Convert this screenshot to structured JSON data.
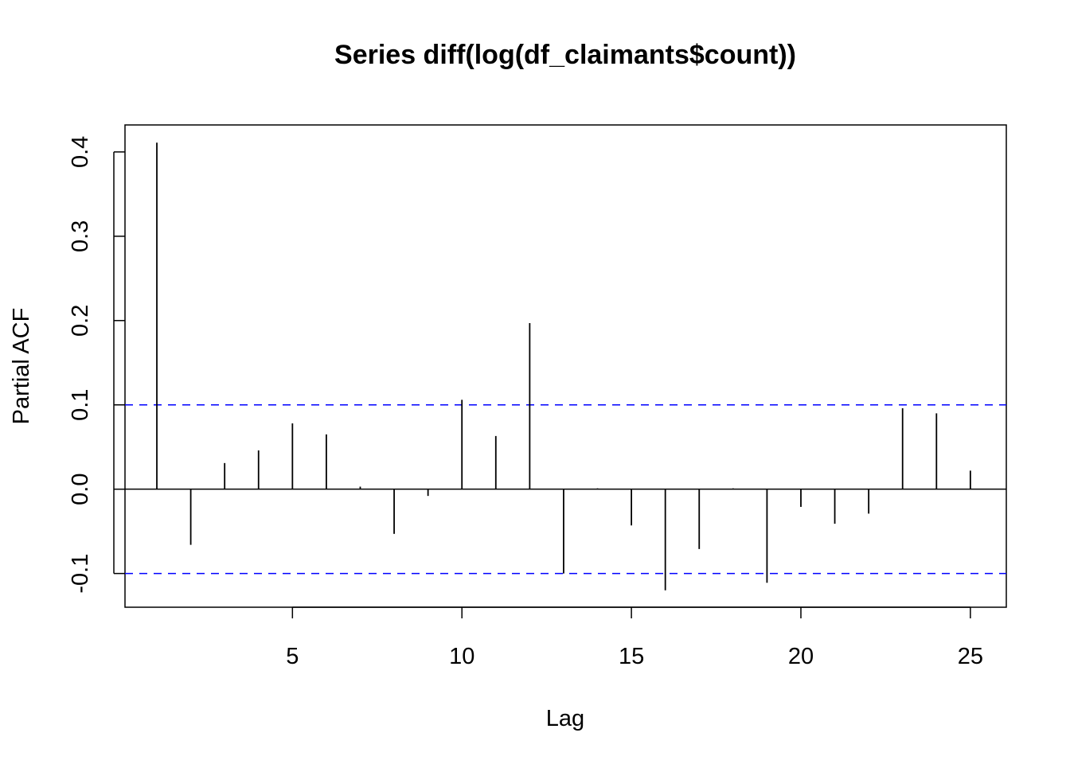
{
  "chart_data": {
    "type": "bar",
    "title": "Series  diff(log(df_claimants$count))",
    "xlabel": "Lag",
    "ylabel": "Partial ACF",
    "xlim": [
      0.06,
      26.06
    ],
    "ylim": [
      -0.14,
      0.432
    ],
    "x_ticks": [
      5,
      10,
      15,
      20,
      25
    ],
    "y_ticks": [
      -0.1,
      0.0,
      0.1,
      0.2,
      0.3,
      0.4
    ],
    "y_tick_labels": [
      "-0.1",
      "0.0",
      "0.1",
      "0.2",
      "0.3",
      "0.4"
    ],
    "x_tick_labels": [
      "5",
      "10",
      "15",
      "20",
      "25"
    ],
    "confidence_band": 0.1,
    "confidence_color": "#0000ff",
    "grid": false,
    "series": [
      {
        "x": [
          1,
          2,
          3,
          4,
          5,
          6,
          7,
          8,
          9,
          10,
          11,
          12,
          13,
          14,
          15,
          16,
          17,
          18,
          19,
          20,
          21,
          22,
          23,
          24,
          25
        ],
        "values": [
          0.411,
          -0.066,
          0.031,
          0.046,
          0.078,
          0.065,
          0.003,
          -0.053,
          -0.008,
          0.106,
          0.063,
          0.197,
          -0.1,
          0.001,
          -0.043,
          -0.12,
          -0.071,
          0.001,
          -0.111,
          -0.021,
          -0.041,
          -0.029,
          0.096,
          0.09,
          0.022
        ]
      }
    ]
  }
}
